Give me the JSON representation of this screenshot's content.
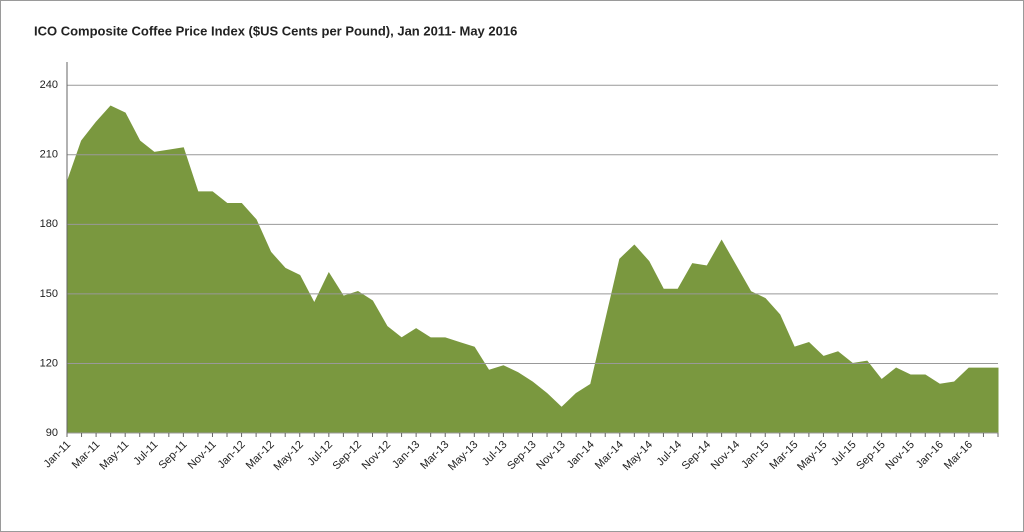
{
  "chart_data": {
    "type": "area",
    "title": "ICO Composite Coffee Price Index ($US Cents per Pound), Jan 2011- May 2016",
    "categories": [
      "Jan-11",
      null,
      "Mar-11",
      null,
      "May-11",
      null,
      "Jul-11",
      null,
      "Sep-11",
      null,
      "Nov-11",
      null,
      "Jan-12",
      null,
      "Mar-12",
      null,
      "May-12",
      null,
      "Jul-12",
      null,
      "Sep-12",
      null,
      "Nov-12",
      null,
      "Jan-13",
      null,
      "Mar-13",
      null,
      "May-13",
      null,
      "Jul-13",
      null,
      "Sep-13",
      null,
      "Nov-13",
      null,
      "Jan-14",
      null,
      "Mar-14",
      null,
      "May-14",
      null,
      "Jul-14",
      null,
      "Sep-14",
      null,
      "Nov-14",
      null,
      "Jan-15",
      null,
      "Mar-15",
      null,
      "May-15",
      null,
      "Jul-15",
      null,
      "Sep-15",
      null,
      "Nov-15",
      null,
      "Jan-16",
      null,
      "Mar-16",
      null,
      null
    ],
    "values": [
      198,
      216,
      224,
      231,
      228,
      216,
      211,
      212,
      213,
      194,
      194,
      189,
      189,
      182,
      168,
      161,
      158,
      146,
      159,
      149,
      151,
      147,
      136,
      131,
      135,
      131,
      131,
      129,
      127,
      117,
      119,
      116,
      112,
      107,
      101,
      107,
      111,
      138,
      165,
      171,
      164,
      152,
      152,
      163,
      162,
      173,
      162,
      151,
      148,
      141,
      127,
      129,
      123,
      125,
      120,
      121,
      113,
      118,
      115,
      115,
      111,
      112,
      118,
      118,
      118
    ],
    "color": "#7a983f",
    "ylim": [
      90,
      250
    ],
    "yticks": [
      90,
      120,
      150,
      180,
      210,
      240
    ],
    "grid": true
  }
}
